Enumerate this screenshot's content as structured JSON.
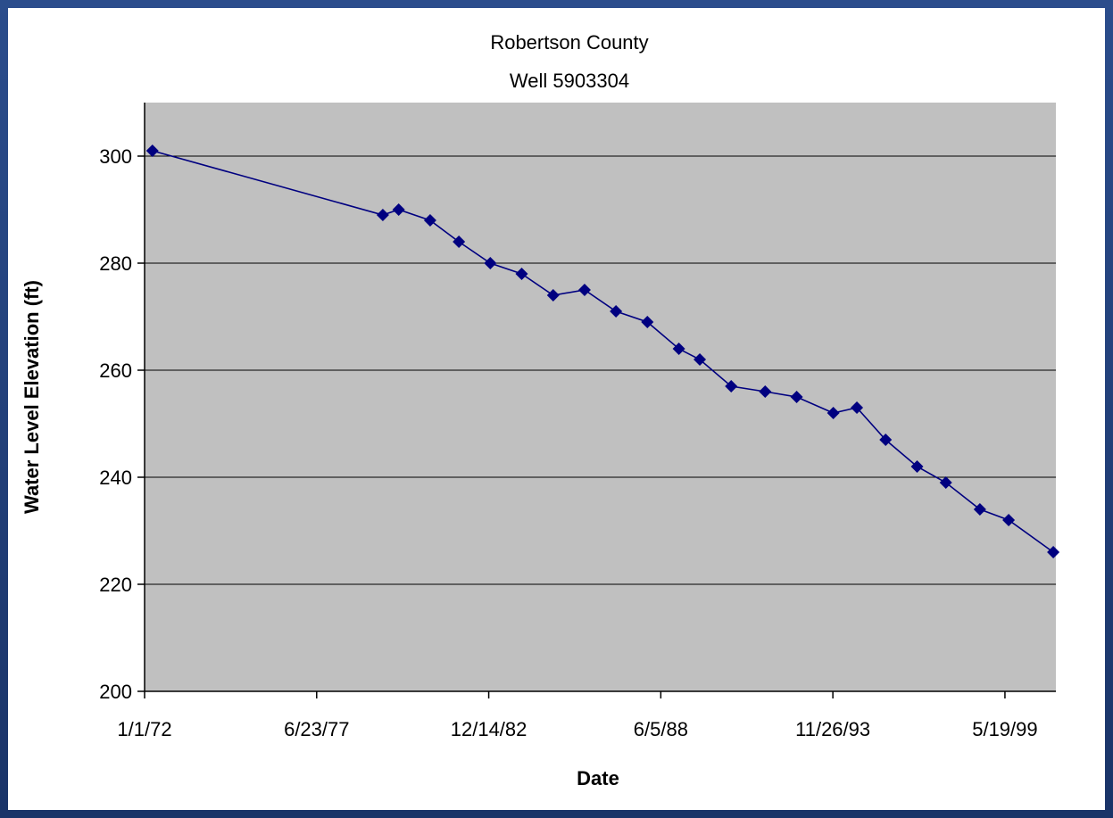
{
  "chart_data": {
    "type": "line",
    "title": "Robertson County",
    "subtitle": "Well 5903304",
    "xlabel": "Date",
    "ylabel": "Water Level Elevation (ft)",
    "ylim": [
      200,
      310
    ],
    "yticks": [
      200,
      220,
      240,
      260,
      280,
      300
    ],
    "xticks": [
      "1/1/72",
      "6/23/77",
      "12/14/82",
      "6/5/88",
      "11/26/93",
      "5/19/99"
    ],
    "xlim": [
      "1/1/72",
      "12/31/00"
    ],
    "grid": "horizontal",
    "background": "#c0c0c0",
    "series_color": "#000080",
    "marker": "diamond",
    "points": [
      {
        "x": "4/1/72",
        "y": 301
      },
      {
        "x": "8/1/79",
        "y": 289
      },
      {
        "x": "2/1/80",
        "y": 290
      },
      {
        "x": "2/1/81",
        "y": 288
      },
      {
        "x": "1/1/82",
        "y": 284
      },
      {
        "x": "1/1/83",
        "y": 280
      },
      {
        "x": "1/1/84",
        "y": 278
      },
      {
        "x": "1/1/85",
        "y": 274
      },
      {
        "x": "1/1/86",
        "y": 275
      },
      {
        "x": "1/1/87",
        "y": 271
      },
      {
        "x": "1/1/88",
        "y": 269
      },
      {
        "x": "1/1/89",
        "y": 264
      },
      {
        "x": "9/1/89",
        "y": 262
      },
      {
        "x": "9/1/90",
        "y": 257
      },
      {
        "x": "10/1/91",
        "y": 256
      },
      {
        "x": "10/1/92",
        "y": 255
      },
      {
        "x": "12/1/93",
        "y": 252
      },
      {
        "x": "9/1/94",
        "y": 253
      },
      {
        "x": "8/1/95",
        "y": 247
      },
      {
        "x": "8/1/96",
        "y": 242
      },
      {
        "x": "7/1/97",
        "y": 239
      },
      {
        "x": "8/1/98",
        "y": 234
      },
      {
        "x": "7/1/99",
        "y": 232
      },
      {
        "x": "12/1/00",
        "y": 226
      }
    ]
  }
}
